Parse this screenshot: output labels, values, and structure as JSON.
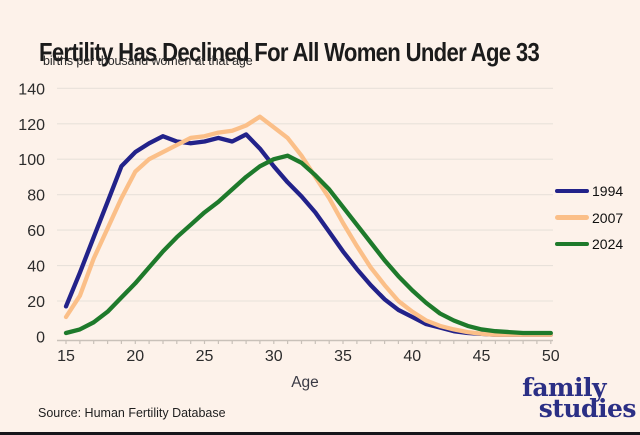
{
  "header": {
    "title": "Fertility Has Declined For All Women Under Age 33",
    "subtitle": "births per thousand women at that age"
  },
  "chart_data": {
    "type": "line",
    "xlabel": "Age",
    "ylabel": "",
    "xlim": [
      15,
      50
    ],
    "ylim": [
      0,
      140
    ],
    "xticks": [
      15,
      20,
      25,
      30,
      35,
      40,
      45,
      50
    ],
    "yticks": [
      0,
      20,
      40,
      60,
      80,
      100,
      120,
      140
    ],
    "grid": "horizontal",
    "legend_position": "right",
    "x": [
      15,
      16,
      17,
      18,
      19,
      20,
      21,
      22,
      23,
      24,
      25,
      26,
      27,
      28,
      29,
      30,
      31,
      32,
      33,
      34,
      35,
      36,
      37,
      38,
      39,
      40,
      41,
      42,
      43,
      44,
      45,
      46,
      47,
      48,
      49,
      50
    ],
    "series": [
      {
        "name": "1994",
        "color": "#22228a",
        "values": [
          17,
          36,
          56,
          76,
          96,
          104,
          109,
          113,
          110,
          109,
          110,
          112,
          110,
          114,
          106,
          96,
          87,
          79,
          70,
          59,
          48,
          38,
          29,
          21,
          15,
          11,
          7,
          5,
          3,
          2,
          1.5,
          1,
          1,
          1,
          1,
          1
        ]
      },
      {
        "name": "2007",
        "color": "#fbbf88",
        "values": [
          11,
          23,
          44,
          61,
          78,
          93,
          100,
          104,
          108,
          112,
          113,
          115,
          116,
          119,
          124,
          118,
          112,
          102,
          90,
          78,
          64,
          51,
          39,
          29,
          20,
          14,
          9,
          6,
          4,
          2.5,
          1.5,
          1,
          1,
          1,
          1,
          1
        ]
      },
      {
        "name": "2024",
        "color": "#1e7a2b",
        "values": [
          2,
          4,
          8,
          14,
          22,
          30,
          39,
          48,
          56,
          63,
          70,
          76,
          83,
          90,
          96,
          100,
          102,
          98,
          91,
          83,
          73,
          63,
          53,
          43,
          34,
          26,
          19,
          13,
          9,
          6,
          4,
          3,
          2.5,
          2,
          2,
          2
        ]
      }
    ]
  },
  "footer": {
    "source": "Source: Human Fertility Database"
  },
  "logo": {
    "line1": "family",
    "line2": "studies"
  },
  "colors": {
    "background": "#fdf2ea",
    "grid": "#e8e1da",
    "axis": "#c9c1b9",
    "ink": "#1b1b1b",
    "logo_navy": "#2b2f85"
  }
}
